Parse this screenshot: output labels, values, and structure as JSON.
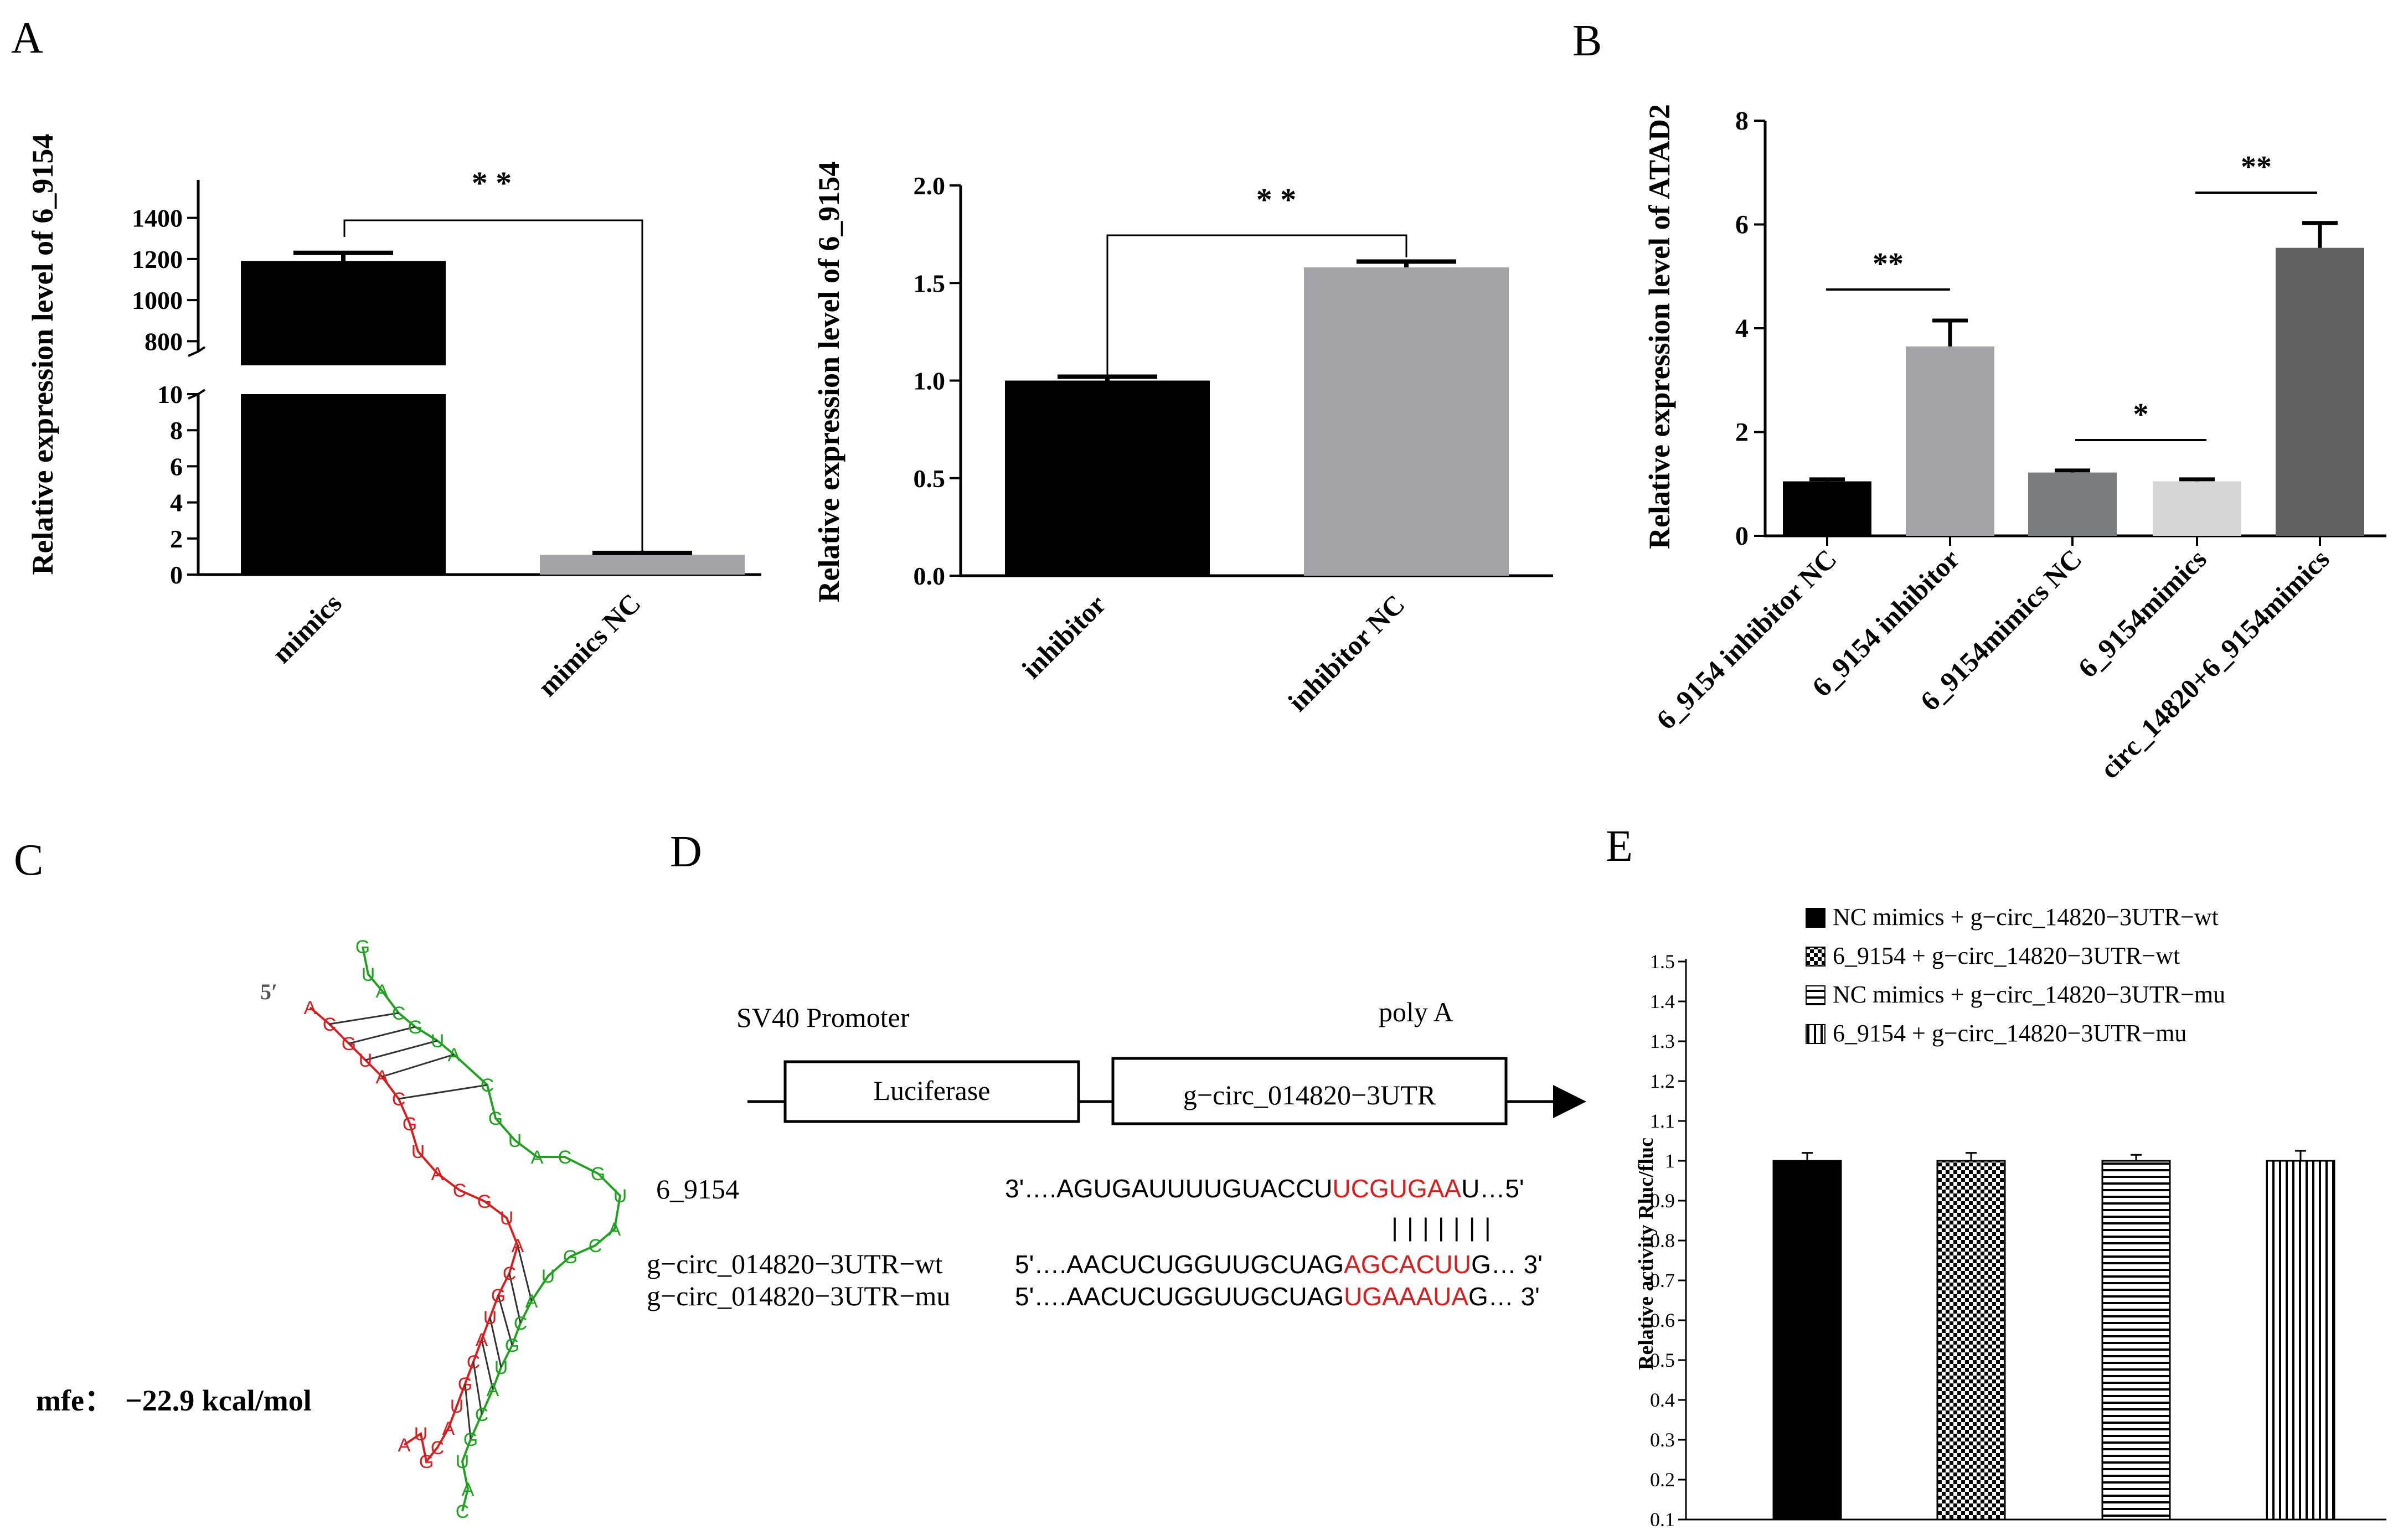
{
  "colors": {
    "black": "#000000",
    "gray_mid": "#a4a4a8",
    "gray_dark": "#7a7d80",
    "gray_light": "#d6d6d6",
    "gray_charcoal": "#606060",
    "rna_red": "#d42020",
    "rna_green": "#22a022"
  },
  "panels": {
    "A": "A",
    "B": "B",
    "C": "C",
    "D": "D",
    "E": "E"
  },
  "panel_c": {
    "mfe_label": "mfe：",
    "mfe_value": "−22.9 kcal/mol",
    "five_prime": "5′"
  },
  "panel_d": {
    "promoter": "SV40 Promoter",
    "polya": "poly A",
    "luciferase": "Luciferase",
    "utr_box": "g−circ_014820−3UTR",
    "mirna_name": "6_9154",
    "mirna_prefix": "3'….AGUGAUUUUGUACCU",
    "mirna_seed": "UCGUGAA",
    "mirna_suffix": "U…5'",
    "pairing": "|||||||",
    "wt_name": "g−circ_014820−3UTR−wt",
    "wt_prefix": "5'….AACUCUGGUUGCUAG",
    "wt_seed": "AGCACUU",
    "wt_suffix": "G… 3'",
    "mu_name": "g−circ_014820−3UTR−mu",
    "mu_prefix": "5'….AACUCUGGUUGCUAG",
    "mu_seed": "UGAAAUA",
    "mu_suffix": "G… 3'"
  },
  "chart_data": [
    {
      "id": "A1",
      "type": "bar",
      "ylabel": "Relative expression level of 6_9154",
      "categories": [
        "mimics",
        "mimics NC"
      ],
      "values": [
        1190,
        1.1
      ],
      "errors": [
        40,
        0.1
      ],
      "bar_colors": [
        "#000000",
        "#a4a4a8"
      ],
      "axis_break": true,
      "lower_ticks": [
        "0",
        "2",
        "4",
        "6",
        "8",
        "10"
      ],
      "upper_ticks": [
        "800",
        "1000",
        "1200",
        "1400"
      ],
      "lower_range": [
        0,
        10
      ],
      "upper_range": [
        750,
        1450
      ],
      "significance": "* *"
    },
    {
      "id": "A2",
      "type": "bar",
      "ylabel": "Relative expression level of 6_9154",
      "categories": [
        "inhibitor",
        "inhibitor NC"
      ],
      "values": [
        1.0,
        1.58
      ],
      "errors": [
        0.02,
        0.03
      ],
      "bar_colors": [
        "#000000",
        "#a4a4a8"
      ],
      "yticks": [
        "0.0",
        "0.5",
        "1.0",
        "1.5",
        "2.0"
      ],
      "ylim": [
        0,
        2
      ],
      "significance": "* *"
    },
    {
      "id": "B",
      "type": "bar",
      "ylabel": "Relative expression level of ATAD2",
      "categories": [
        "6_9154 inhibitor NC",
        "6_9154 inhibitor",
        "6_9154mimics NC",
        "6_9154mimics",
        "circ_14820+6_9154mimics"
      ],
      "values": [
        1.05,
        3.65,
        1.22,
        1.05,
        5.55
      ],
      "errors": [
        0.04,
        0.5,
        0.04,
        0.04,
        0.48
      ],
      "bar_colors": [
        "#000000",
        "#a4a4a8",
        "#7a7d80",
        "#d6d6d6",
        "#606060"
      ],
      "yticks": [
        "0",
        "2",
        "4",
        "6",
        "8"
      ],
      "ylim": [
        0,
        8
      ],
      "comparisons": [
        {
          "between": [
            0,
            1
          ],
          "label": "**"
        },
        {
          "between": [
            2,
            3
          ],
          "label": "*"
        },
        {
          "between": [
            3,
            4
          ],
          "label": "**"
        }
      ]
    },
    {
      "id": "E",
      "type": "bar",
      "ylabel": "Relative activity Rluc/fluc",
      "categories": [
        "NC mimics + g−circ_14820−3UTR−wt",
        "6_9154 + g−circ_14820−3UTR−wt",
        "NC mimics + g−circ_14820−3UTR−mu",
        "6_9154 + g−circ_14820−3UTR−mu"
      ],
      "values": [
        1.0,
        1.0,
        1.0,
        1.0
      ],
      "errors": [
        0.02,
        0.02,
        0.015,
        0.025
      ],
      "patterns": [
        "solid",
        "checker",
        "horizontal",
        "vertical"
      ],
      "yticks": [
        "0.1",
        "0.2",
        "0.3",
        "0.4",
        "0.5",
        "0.6",
        "0.7",
        "0.8",
        "0.9",
        "1",
        "1.1",
        "1.2",
        "1.3",
        "1.4",
        "1.5"
      ],
      "ylim": [
        0.1,
        1.5
      ],
      "legend": [
        "NC mimics + g−circ_14820−3UTR−wt",
        "6_9154 + g−circ_14820−3UTR−wt",
        "NC mimics + g−circ_14820−3UTR−mu",
        "6_9154 + g−circ_14820−3UTR−mu"
      ]
    }
  ]
}
